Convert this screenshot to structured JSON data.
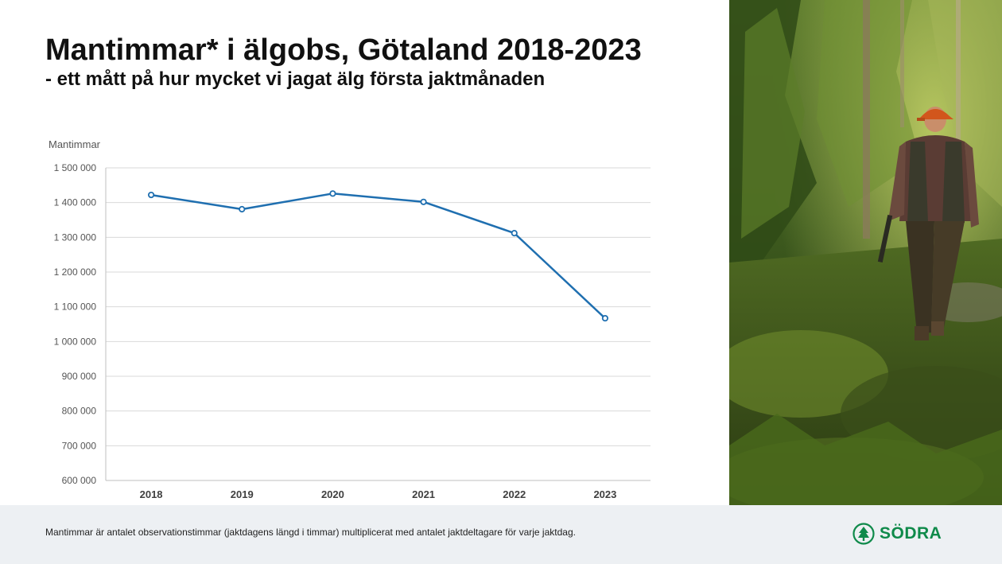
{
  "slide": {
    "title": "Mantimmar* i älgobs, Götaland 2018-2023",
    "subtitle": "- ett mått på hur mycket vi jagat älg första jaktmånaden",
    "footnote": "Mantimmar är antalet observationstimmar  (jaktdagens längd i timmar) multiplicerat med antalet jaktdeltagare för varje jaktdag.",
    "logo_text": "SÖDRA",
    "photo_icon": "hunter-in-forest-photo"
  },
  "colors": {
    "line": "#1f6fb0",
    "grid": "#d9d9d9",
    "axis_text": "#555555",
    "tick_text_x": "#404040",
    "brand": "#0f8a4a",
    "footer_bg": "#edf0f3"
  },
  "chart_data": {
    "type": "line",
    "title": "",
    "xlabel": "",
    "ylabel": "Mantimmar",
    "categories": [
      "2018",
      "2019",
      "2020",
      "2021",
      "2022",
      "2023"
    ],
    "series": [
      {
        "values": [
          1422000,
          1381000,
          1426000,
          1402000,
          1312000,
          1067000
        ]
      }
    ],
    "ylim": [
      600000,
      1500000
    ],
    "yticks": [
      600000,
      700000,
      800000,
      900000,
      1000000,
      1100000,
      1200000,
      1300000,
      1400000,
      1500000
    ],
    "ytick_labels": [
      "600 000",
      "700 000",
      "800 000",
      "900 000",
      "1 000 000",
      "1 100 000",
      "1 200 000",
      "1 300 000",
      "1 400 000",
      "1 500 000"
    ],
    "grid": true,
    "legend": "none",
    "markers": "open-circle"
  }
}
